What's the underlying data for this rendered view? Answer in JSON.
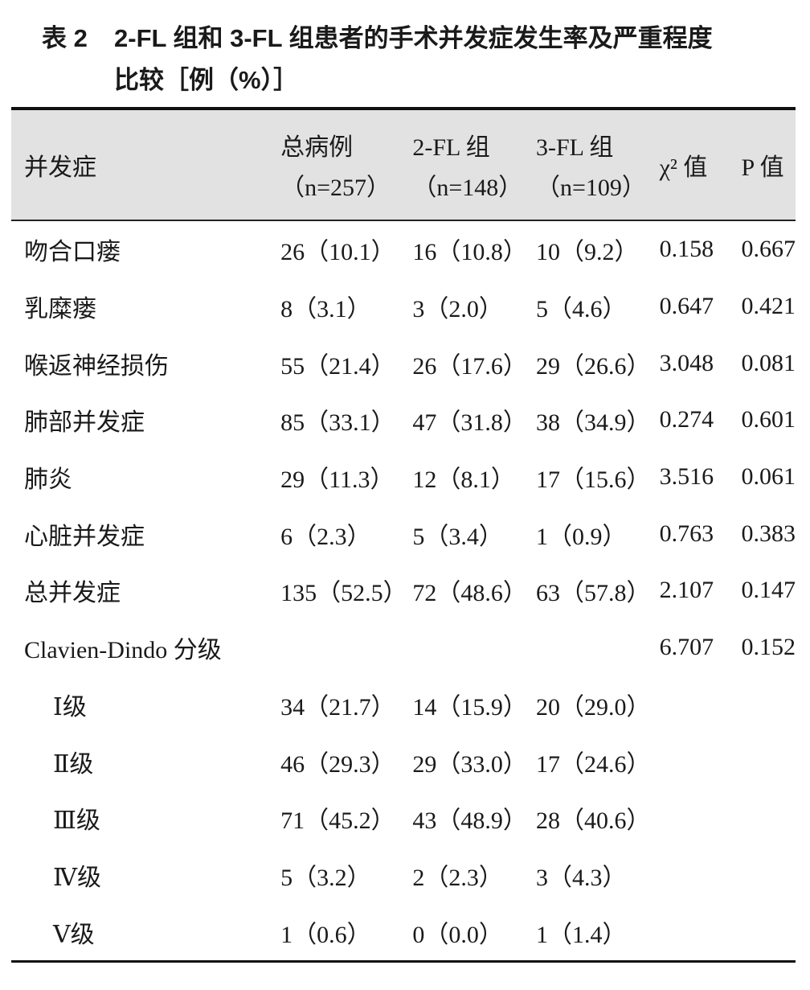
{
  "title": {
    "number": "表 2",
    "line1": "2-FL 组和 3-FL 组患者的手术并发症发生率及严重程度",
    "line2": "比较［例（%）］"
  },
  "header": {
    "col1": "并发症",
    "col2": {
      "label": "总病例",
      "n": "（n=257）"
    },
    "col3": {
      "label": "2-FL 组",
      "n": "（n=148）"
    },
    "col4": {
      "label": "3-FL 组",
      "n": "（n=109）"
    },
    "col5": "χ² 值",
    "col6": "P 值"
  },
  "rows": [
    {
      "name": "吻合口瘘",
      "total": "26（10.1）",
      "fl2": "16（10.8）",
      "fl3": "10（9.2）",
      "chi2": "0.158",
      "p": "0.667"
    },
    {
      "name": "乳糜瘘",
      "total": "8（3.1）",
      "fl2": "3（2.0）",
      "fl3": "5（4.6）",
      "chi2": "0.647",
      "p": "0.421"
    },
    {
      "name": "喉返神经损伤",
      "total": "55（21.4）",
      "fl2": "26（17.6）",
      "fl3": "29（26.6）",
      "chi2": "3.048",
      "p": "0.081"
    },
    {
      "name": "肺部并发症",
      "total": "85（33.1）",
      "fl2": "47（31.8）",
      "fl3": "38（34.9）",
      "chi2": "0.274",
      "p": "0.601"
    },
    {
      "name": "肺炎",
      "total": "29（11.3）",
      "fl2": "12（8.1）",
      "fl3": "17（15.6）",
      "chi2": "3.516",
      "p": "0.061"
    },
    {
      "name": "心脏并发症",
      "total": "6（2.3）",
      "fl2": "5（3.4）",
      "fl3": "1（0.9）",
      "chi2": "0.763",
      "p": "0.383"
    },
    {
      "name": "总并发症",
      "total": "135（52.5）",
      "fl2": "72（48.6）",
      "fl3": "63（57.8）",
      "chi2": "2.107",
      "p": "0.147"
    },
    {
      "name": "Clavien-Dindo 分级",
      "total": "",
      "fl2": "",
      "fl3": "",
      "chi2": "6.707",
      "p": "0.152"
    },
    {
      "name": "Ⅰ级",
      "total": "34（21.7）",
      "fl2": "14（15.9）",
      "fl3": "20（29.0）",
      "chi2": "",
      "p": "",
      "sub": true
    },
    {
      "name": "Ⅱ级",
      "total": "46（29.3）",
      "fl2": "29（33.0）",
      "fl3": "17（24.6）",
      "chi2": "",
      "p": "",
      "sub": true
    },
    {
      "name": "Ⅲ级",
      "total": "71（45.2）",
      "fl2": "43（48.9）",
      "fl3": "28（40.6）",
      "chi2": "",
      "p": "",
      "sub": true
    },
    {
      "name": "Ⅳ级",
      "total": "5（3.2）",
      "fl2": "2（2.3）",
      "fl3": "3（4.3）",
      "chi2": "",
      "p": "",
      "sub": true
    },
    {
      "name": "Ⅴ级",
      "total": "1（0.6）",
      "fl2": "0（0.0）",
      "fl3": "1（1.4）",
      "chi2": "",
      "p": "",
      "sub": true
    }
  ]
}
